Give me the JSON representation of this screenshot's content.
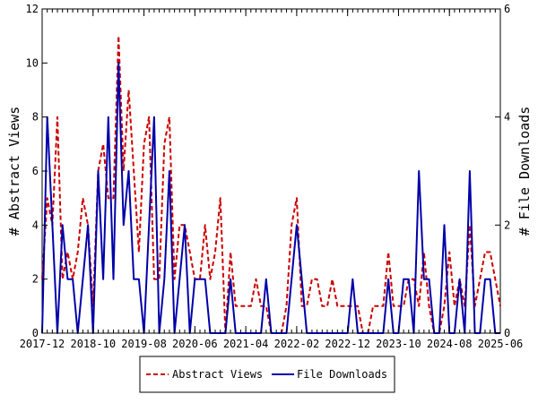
{
  "chart_data": {
    "type": "line",
    "x_tick_labels": [
      "2017-12",
      "2018-10",
      "2019-08",
      "2020-06",
      "2021-04",
      "2022-02",
      "2022-12",
      "2023-10",
      "2024-08",
      "2025-06"
    ],
    "x_range": [
      "2017-12",
      "2025-06"
    ],
    "ylabel_left": "# Abstract Views",
    "ylabel_right": "# File Downloads",
    "ylim_left": [
      0,
      12
    ],
    "ylim_right": [
      0,
      6
    ],
    "yticks_left": [
      0,
      2,
      4,
      6,
      8,
      10,
      12
    ],
    "yticks_right": [
      0,
      2,
      4,
      6
    ],
    "grid": false,
    "legend_position": "bottom-center",
    "series": [
      {
        "name": "Abstract Views",
        "axis": "left",
        "color": "#cc0000",
        "style": "dashed",
        "x": [
          "2017-12",
          "2018-01",
          "2018-02",
          "2018-03",
          "2018-04",
          "2018-05",
          "2018-06",
          "2018-07",
          "2018-08",
          "2018-09",
          "2018-10",
          "2018-11",
          "2018-12",
          "2019-01",
          "2019-02",
          "2019-03",
          "2019-04",
          "2019-05",
          "2019-06",
          "2019-07",
          "2019-08",
          "2019-09",
          "2019-10",
          "2019-11",
          "2019-12",
          "2020-01",
          "2020-02",
          "2020-03",
          "2020-04",
          "2020-05",
          "2020-06",
          "2020-07",
          "2020-08",
          "2020-09",
          "2020-10",
          "2020-11",
          "2020-12",
          "2021-01",
          "2021-02",
          "2021-03",
          "2021-04",
          "2021-05",
          "2021-06",
          "2021-07",
          "2021-08",
          "2021-09",
          "2021-10",
          "2021-11",
          "2021-12",
          "2022-01",
          "2022-02",
          "2022-03",
          "2022-04",
          "2022-05",
          "2022-06",
          "2022-07",
          "2022-08",
          "2022-09",
          "2022-10",
          "2022-11",
          "2022-12",
          "2023-01",
          "2023-02",
          "2023-03",
          "2023-04",
          "2023-05",
          "2023-06",
          "2023-07",
          "2023-08",
          "2023-09",
          "2023-10",
          "2023-11",
          "2023-12",
          "2024-01",
          "2024-02",
          "2024-03",
          "2024-04",
          "2024-05",
          "2024-06",
          "2024-07",
          "2024-08",
          "2024-09",
          "2024-10",
          "2024-11",
          "2024-12",
          "2025-01",
          "2025-02",
          "2025-03",
          "2025-04",
          "2025-05",
          "2025-06"
        ],
        "values": [
          2,
          5,
          4,
          8,
          2,
          3,
          2,
          3,
          5,
          4,
          1,
          6,
          7,
          5,
          5,
          11,
          6,
          9,
          6,
          3,
          7,
          8,
          2,
          2,
          7,
          8,
          2,
          4,
          4,
          3,
          2,
          2,
          4,
          2,
          3,
          5,
          0,
          3,
          1,
          1,
          1,
          1,
          2,
          1,
          1,
          0,
          0,
          0,
          1,
          4,
          5,
          1,
          1,
          2,
          2,
          1,
          1,
          2,
          1,
          1,
          1,
          1,
          1,
          0,
          0,
          1,
          1,
          1,
          3,
          1,
          1,
          1,
          2,
          2,
          1,
          3,
          1,
          0,
          0,
          1,
          3,
          1,
          2,
          1,
          4,
          1,
          2,
          3,
          3,
          2,
          1
        ]
      },
      {
        "name": "File Downloads",
        "axis": "right",
        "color": "#0000aa",
        "style": "solid",
        "x": [
          "2017-12",
          "2018-01",
          "2018-02",
          "2018-03",
          "2018-04",
          "2018-05",
          "2018-06",
          "2018-07",
          "2018-08",
          "2018-09",
          "2018-10",
          "2018-11",
          "2018-12",
          "2019-01",
          "2019-02",
          "2019-03",
          "2019-04",
          "2019-05",
          "2019-06",
          "2019-07",
          "2019-08",
          "2019-09",
          "2019-10",
          "2019-11",
          "2019-12",
          "2020-01",
          "2020-02",
          "2020-03",
          "2020-04",
          "2020-05",
          "2020-06",
          "2020-07",
          "2020-08",
          "2020-09",
          "2020-10",
          "2020-11",
          "2020-12",
          "2021-01",
          "2021-02",
          "2021-03",
          "2021-04",
          "2021-05",
          "2021-06",
          "2021-07",
          "2021-08",
          "2021-09",
          "2021-10",
          "2021-11",
          "2021-12",
          "2022-01",
          "2022-02",
          "2022-03",
          "2022-04",
          "2022-05",
          "2022-06",
          "2022-07",
          "2022-08",
          "2022-09",
          "2022-10",
          "2022-11",
          "2022-12",
          "2023-01",
          "2023-02",
          "2023-03",
          "2023-04",
          "2023-05",
          "2023-06",
          "2023-07",
          "2023-08",
          "2023-09",
          "2023-10",
          "2023-11",
          "2023-12",
          "2024-01",
          "2024-02",
          "2024-03",
          "2024-04",
          "2024-05",
          "2024-06",
          "2024-07",
          "2024-08",
          "2024-09",
          "2024-10",
          "2024-11",
          "2024-12",
          "2025-01",
          "2025-02",
          "2025-03",
          "2025-04",
          "2025-05",
          "2025-06"
        ],
        "values": [
          0,
          4,
          2,
          0,
          2,
          1,
          1,
          0,
          1,
          2,
          0,
          3,
          1,
          4,
          1,
          5,
          2,
          3,
          1,
          1,
          0,
          2,
          4,
          0,
          1,
          3,
          0,
          1,
          2,
          0,
          1,
          1,
          1,
          0,
          0,
          0,
          0,
          1,
          0,
          0,
          0,
          0,
          0,
          0,
          1,
          0,
          0,
          0,
          0,
          1,
          2,
          1,
          0,
          0,
          0,
          0,
          0,
          0,
          0,
          0,
          0,
          1,
          0,
          0,
          0,
          0,
          0,
          0,
          1,
          0,
          0,
          1,
          1,
          0,
          3,
          1,
          1,
          0,
          0,
          2,
          0,
          0,
          1,
          0,
          3,
          0,
          0,
          1,
          1,
          0,
          0
        ]
      }
    ]
  }
}
